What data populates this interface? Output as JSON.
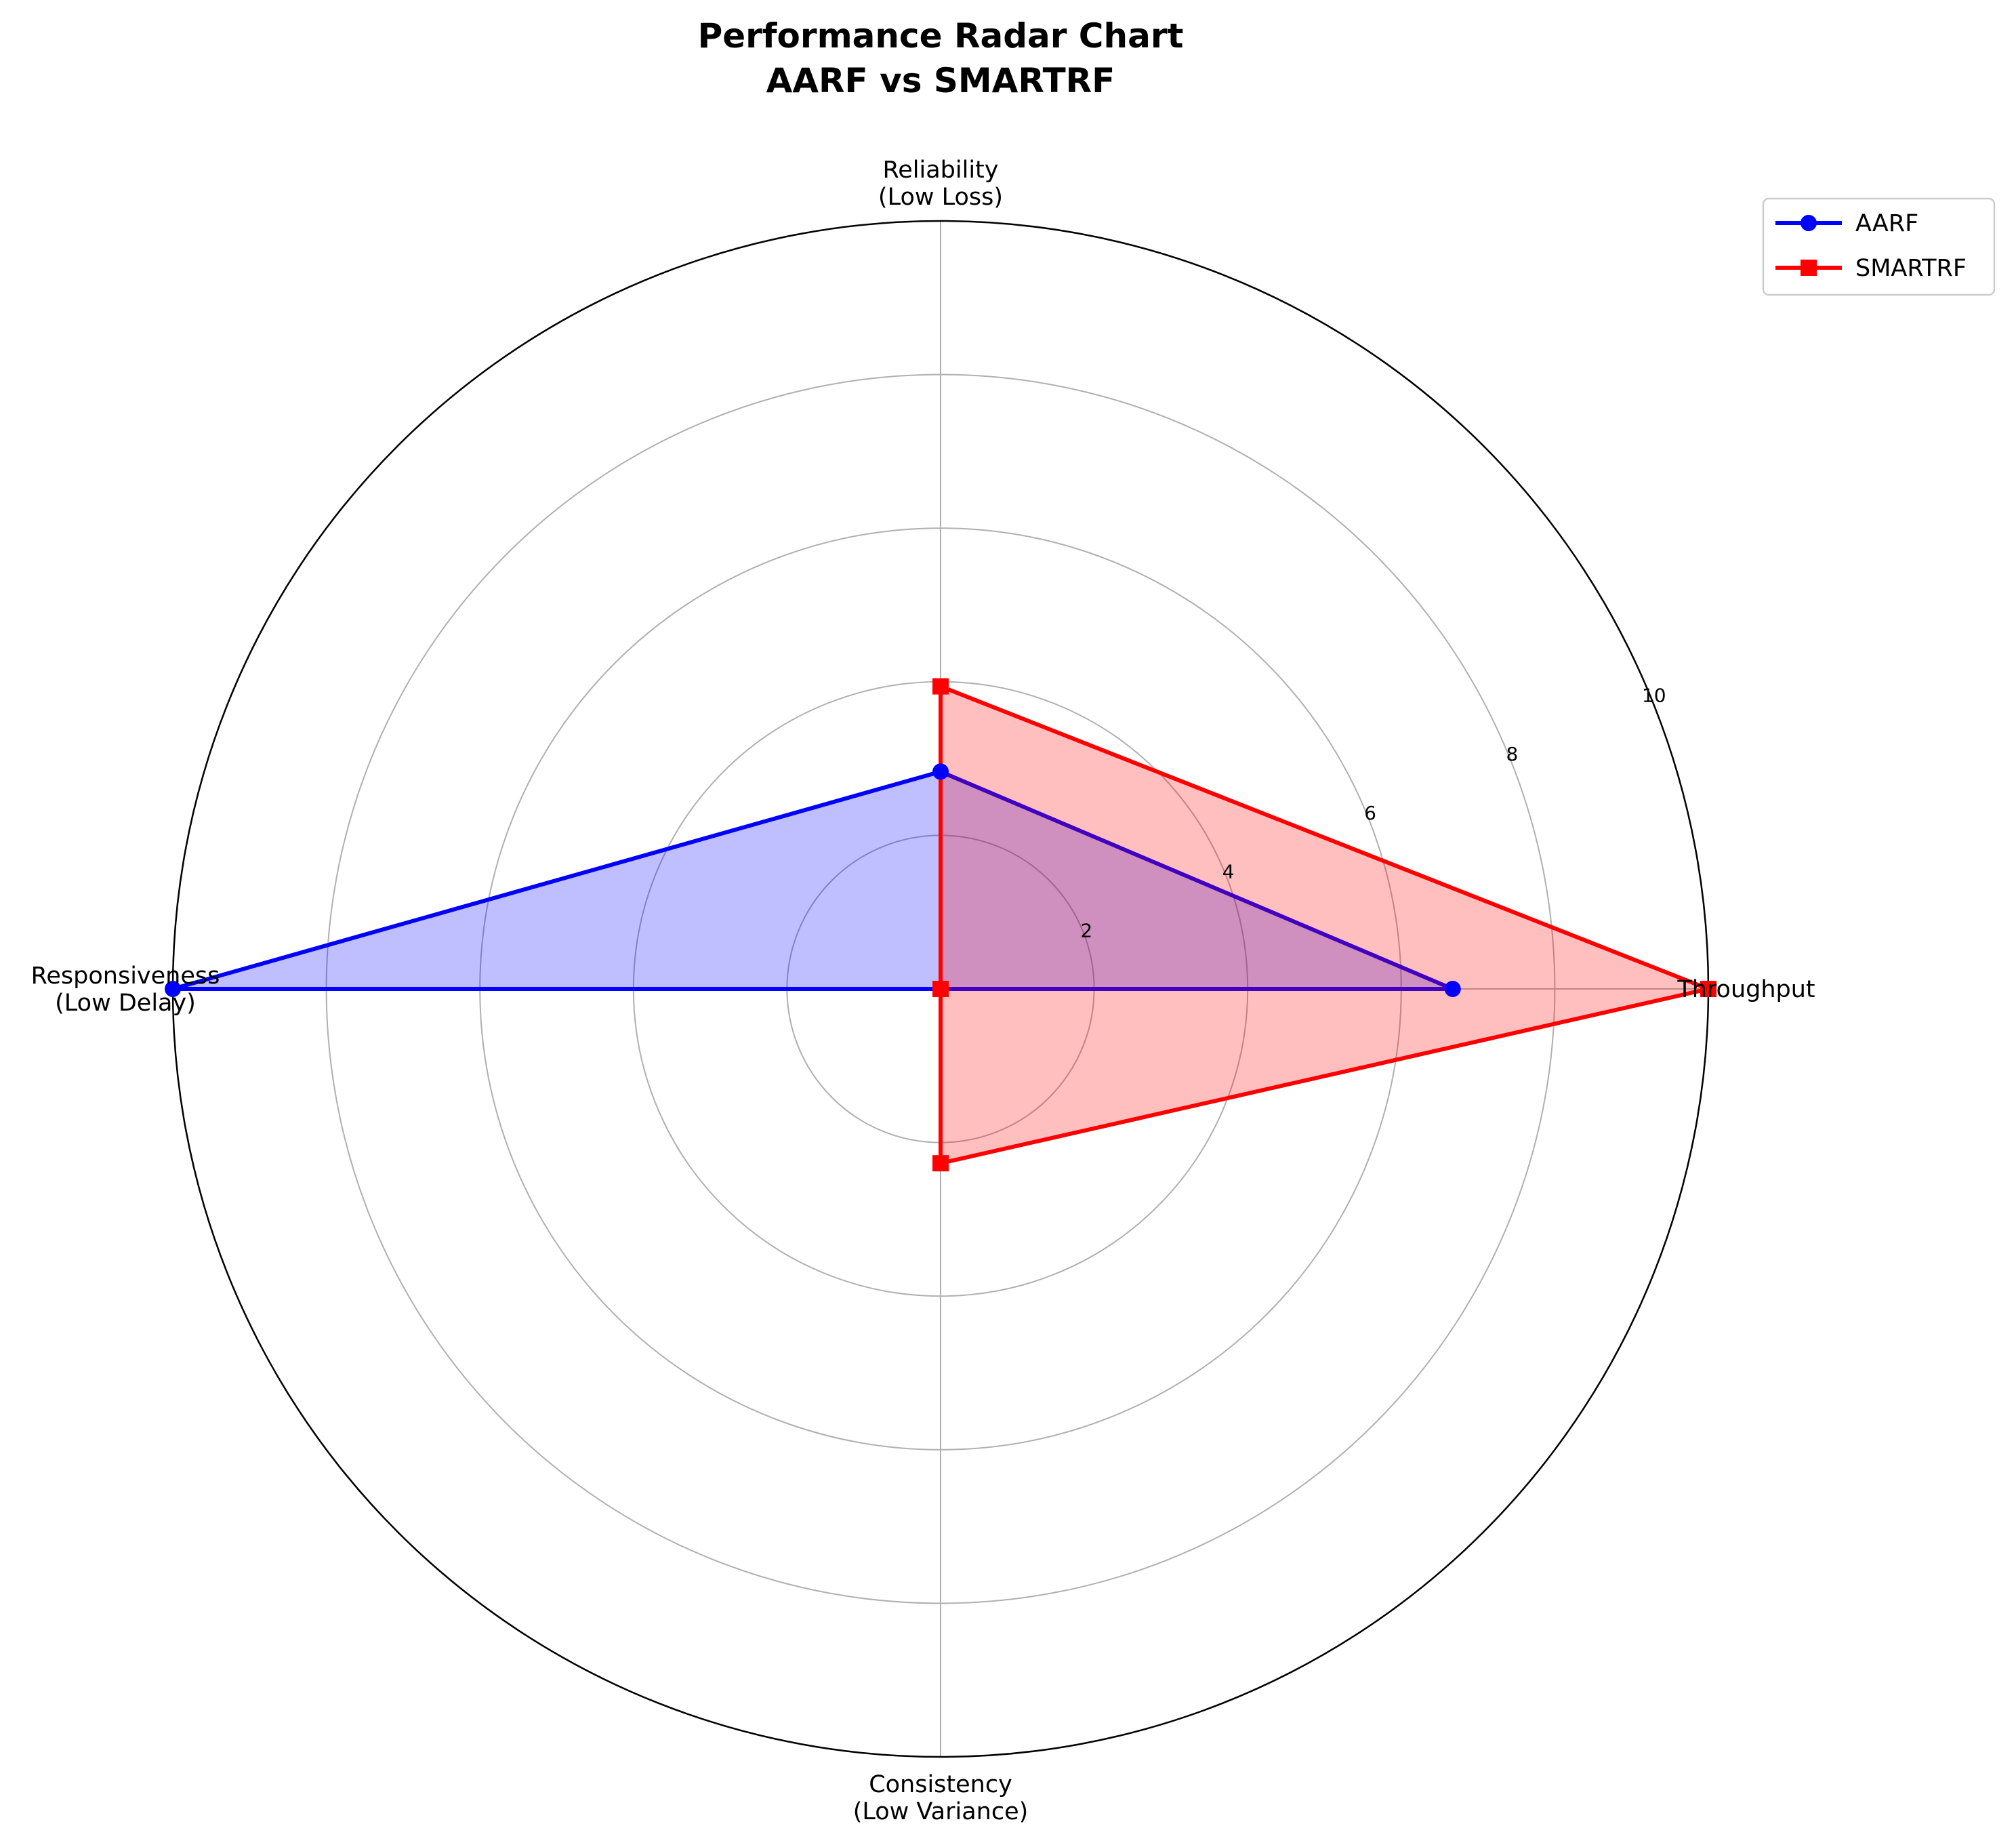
{
  "chart_data": {
    "type": "radar",
    "title": [
      "Performance Radar Chart",
      "AARF vs SMARTRF"
    ],
    "axes": [
      {
        "lines": [
          "Throughput"
        ]
      },
      {
        "lines": [
          "Reliability",
          "(Low Loss)"
        ]
      },
      {
        "lines": [
          "Responsiveness",
          "(Low Delay)"
        ]
      },
      {
        "lines": [
          "Consistency",
          "(Low Variance)"
        ]
      }
    ],
    "rlim": [
      0,
      10
    ],
    "rticks": [
      2,
      4,
      6,
      8,
      10
    ],
    "rtick_labels": [
      "2",
      "4",
      "6",
      "8",
      "10"
    ],
    "grid": true,
    "legend_position": "top-right",
    "series": [
      {
        "name": "AARF",
        "values": [
          6.67,
          2.83,
          10.0,
          0.0
        ],
        "color": "#0000ff",
        "fill": "#0000ff",
        "marker": "circle"
      },
      {
        "name": "SMARTRF",
        "values": [
          10.0,
          3.94,
          0.0,
          2.27
        ],
        "color": "#ff0000",
        "fill": "#ff0000",
        "marker": "square"
      }
    ]
  }
}
